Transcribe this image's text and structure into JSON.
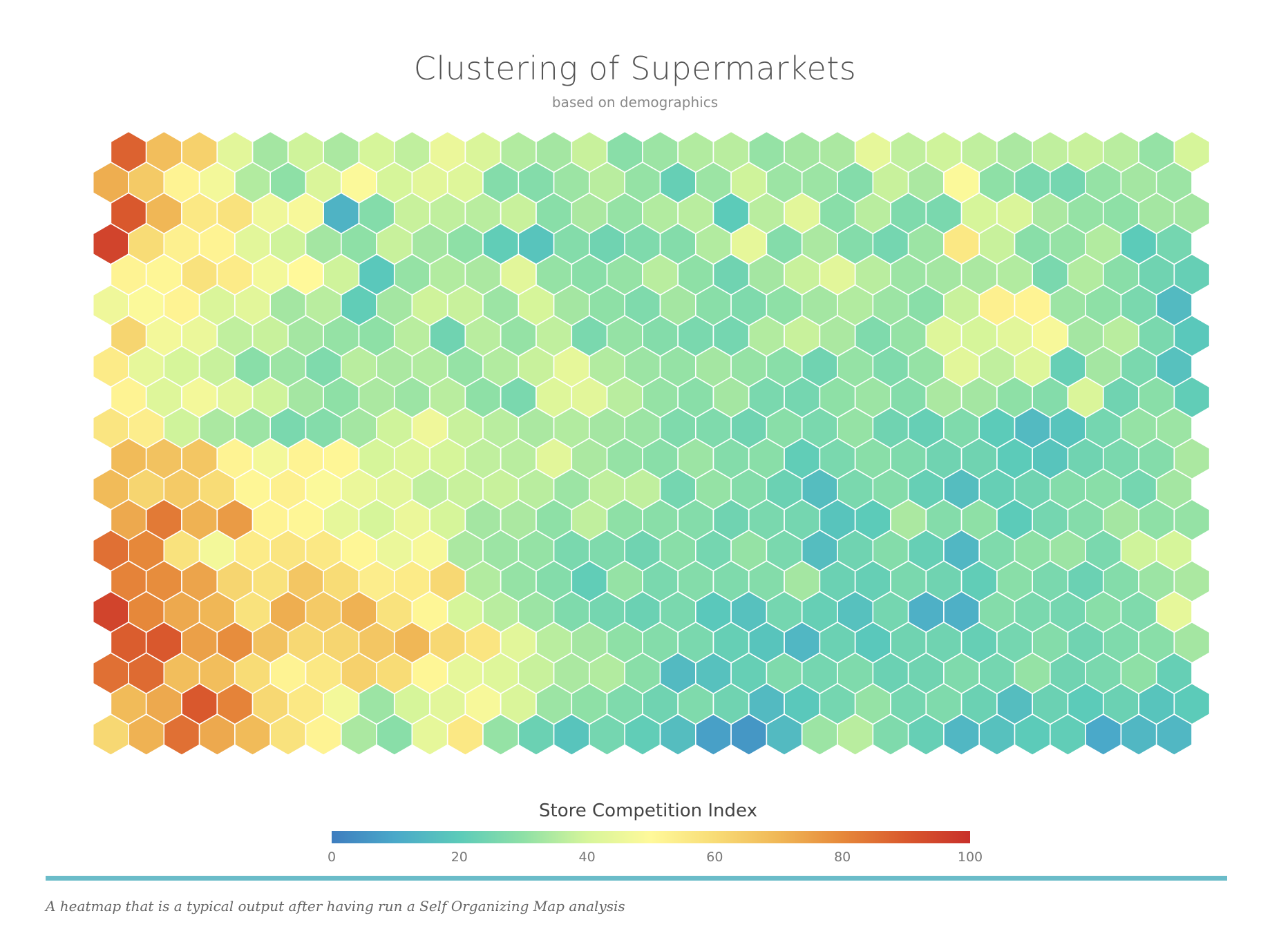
{
  "chart_data": {
    "type": "heatmap",
    "title": "Clustering of Supermarkets",
    "subtitle": "based on demographics",
    "colorbar": {
      "label": "Store Competition Index",
      "range": [
        0,
        100
      ],
      "ticks": [
        0,
        20,
        40,
        60,
        80,
        100
      ],
      "colors": [
        "#3e7dbf",
        "#4aa9c9",
        "#5ccbb9",
        "#8ee0a6",
        "#d6f59a",
        "#fff99a",
        "#f8dc76",
        "#f0b756",
        "#e6883a",
        "#d9582d",
        "#c8302a"
      ]
    },
    "grid": {
      "columns": 31,
      "rows": 20,
      "layout": "hexagonal"
    },
    "values": [
      [
        88,
        68,
        63,
        43,
        33,
        39,
        34,
        40,
        37,
        45,
        41,
        35,
        33,
        38,
        29,
        32,
        35,
        36,
        31,
        33,
        34,
        44,
        37,
        39,
        37,
        34,
        37,
        38,
        36,
        31,
        40
      ],
      [
        72,
        65,
        52,
        47,
        35,
        30,
        41,
        49,
        40,
        43,
        42,
        28,
        28,
        32,
        36,
        31,
        22,
        32,
        39,
        32,
        32,
        28,
        38,
        34,
        49,
        30,
        26,
        25,
        31,
        33,
        32
      ],
      [
        90,
        70,
        56,
        58,
        46,
        48,
        13,
        28,
        38,
        37,
        36,
        38,
        29,
        34,
        31,
        35,
        36,
        20,
        36,
        43,
        29,
        36,
        27,
        26,
        40,
        41,
        34,
        31,
        30,
        33,
        33
      ],
      [
        95,
        60,
        53,
        52,
        43,
        39,
        33,
        30,
        38,
        33,
        30,
        21,
        18,
        28,
        24,
        27,
        28,
        35,
        44,
        28,
        34,
        28,
        25,
        32,
        56,
        38,
        29,
        31,
        35,
        20,
        25
      ],
      [
        52,
        51,
        58,
        55,
        47,
        50,
        39,
        19,
        31,
        35,
        34,
        43,
        31,
        29,
        31,
        36,
        30,
        24,
        33,
        38,
        43,
        36,
        32,
        33,
        34,
        35,
        26,
        35,
        29,
        24,
        22
      ],
      [
        46,
        49,
        52,
        41,
        43,
        33,
        36,
        21,
        33,
        39,
        38,
        32,
        40,
        33,
        30,
        27,
        33,
        29,
        27,
        30,
        33,
        35,
        32,
        29,
        38,
        53,
        52,
        32,
        30,
        26,
        15
      ],
      [
        62,
        47,
        45,
        37,
        38,
        33,
        31,
        30,
        36,
        24,
        36,
        31,
        37,
        26,
        31,
        28,
        26,
        25,
        35,
        38,
        34,
        27,
        31,
        42,
        40,
        43,
        48,
        33,
        36,
        26,
        19
      ],
      [
        55,
        44,
        40,
        38,
        29,
        32,
        27,
        36,
        34,
        35,
        31,
        35,
        38,
        44,
        35,
        32,
        31,
        33,
        31,
        29,
        24,
        31,
        27,
        31,
        43,
        37,
        42,
        22,
        33,
        26,
        17
      ],
      [
        52,
        42,
        47,
        43,
        39,
        33,
        30,
        34,
        32,
        36,
        30,
        26,
        42,
        43,
        36,
        31,
        29,
        33,
        26,
        25,
        30,
        32,
        28,
        34,
        33,
        30,
        28,
        41,
        24,
        29,
        21
      ],
      [
        57,
        54,
        39,
        34,
        32,
        26,
        28,
        33,
        39,
        46,
        38,
        36,
        34,
        35,
        33,
        32,
        27,
        27,
        24,
        29,
        26,
        31,
        24,
        22,
        27,
        20,
        15,
        18,
        25,
        31,
        32
      ],
      [
        69,
        67,
        66,
        52,
        47,
        52,
        51,
        40,
        42,
        40,
        37,
        36,
        43,
        34,
        31,
        29,
        32,
        28,
        29,
        21,
        26,
        29,
        27,
        24,
        24,
        20,
        18,
        24,
        26,
        28,
        34
      ],
      [
        69,
        62,
        65,
        60,
        51,
        53,
        49,
        45,
        43,
        37,
        38,
        38,
        36,
        32,
        37,
        37,
        25,
        31,
        28,
        23,
        16,
        26,
        28,
        22,
        16,
        22,
        24,
        28,
        29,
        25,
        33
      ],
      [
        73,
        83,
        71,
        76,
        52,
        51,
        44,
        40,
        45,
        40,
        33,
        34,
        30,
        37,
        30,
        29,
        28,
        24,
        26,
        25,
        18,
        20,
        34,
        28,
        30,
        20,
        25,
        28,
        33,
        30,
        31
      ],
      [
        85,
        80,
        58,
        47,
        55,
        57,
        56,
        51,
        45,
        48,
        34,
        32,
        31,
        26,
        27,
        24,
        29,
        25,
        31,
        26,
        16,
        24,
        28,
        22,
        14,
        27,
        30,
        32,
        26,
        39,
        40
      ],
      [
        81,
        79,
        74,
        62,
        58,
        66,
        60,
        54,
        55,
        61,
        35,
        31,
        28,
        21,
        31,
        26,
        28,
        27,
        28,
        33,
        23,
        22,
        26,
        24,
        21,
        29,
        26,
        23,
        28,
        32,
        34
      ],
      [
        95,
        80,
        73,
        70,
        58,
        72,
        65,
        71,
        58,
        51,
        40,
        36,
        32,
        27,
        25,
        23,
        26,
        19,
        17,
        25,
        22,
        17,
        25,
        12,
        12,
        28,
        26,
        25,
        29,
        27,
        44
      ],
      [
        89,
        90,
        75,
        79,
        67,
        61,
        62,
        66,
        70,
        61,
        57,
        43,
        36,
        33,
        30,
        28,
        26,
        22,
        18,
        14,
        23,
        19,
        24,
        24,
        22,
        25,
        28,
        24,
        27,
        29,
        33
      ],
      [
        85,
        86,
        68,
        68,
        60,
        52,
        56,
        63,
        60,
        51,
        44,
        42,
        38,
        34,
        35,
        29,
        15,
        17,
        22,
        27,
        25,
        27,
        23,
        24,
        27,
        25,
        31,
        24,
        26,
        30,
        22
      ],
      [
        69,
        73,
        90,
        81,
        61,
        56,
        47,
        32,
        40,
        43,
        48,
        41,
        32,
        30,
        27,
        24,
        27,
        24,
        15,
        19,
        25,
        31,
        25,
        27,
        23,
        16,
        23,
        20,
        23,
        18,
        20
      ],
      [
        61,
        71,
        85,
        73,
        69,
        58,
        52,
        34,
        29,
        44,
        56,
        31,
        23,
        18,
        25,
        21,
        16,
        8,
        6,
        15,
        32,
        36,
        27,
        22,
        14,
        17,
        20,
        21,
        10,
        14,
        14
      ]
    ]
  },
  "caption": "A heatmap that is a typical output after having run a Self Organizing Map analysis"
}
